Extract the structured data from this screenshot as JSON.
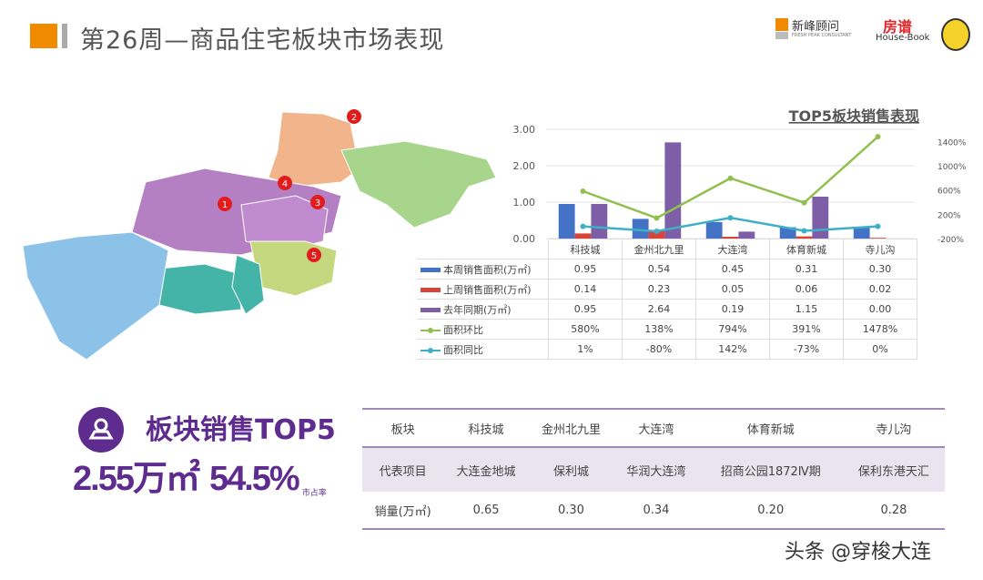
{
  "header": {
    "title": "第26周—商品住宅板块市场表现",
    "logo1": "新峰顾问",
    "logo1_sub": "FRESH PEAK CONSULTANT",
    "logo2": "房谱",
    "logo2_sub": "House-Book"
  },
  "map": {
    "markers": [
      "1",
      "2",
      "3",
      "4",
      "5"
    ]
  },
  "chart_data": {
    "type": "bar",
    "title": "TOP5板块销售表现",
    "categories": [
      "科技城",
      "金州北九里",
      "大连湾",
      "体育新城",
      "寺儿沟"
    ],
    "ylim": [
      0,
      3
    ],
    "yticks": [
      "0.00",
      "1.00",
      "2.00",
      "3.00"
    ],
    "y2lim": [
      -200,
      1600
    ],
    "y2ticks": [
      "-200%",
      "200%",
      "600%",
      "1000%",
      "1400%"
    ],
    "series": [
      {
        "name": "本周销售面积(万㎡)",
        "kind": "bar",
        "color": "#4472c4",
        "values": [
          0.95,
          0.54,
          0.45,
          0.31,
          0.3
        ],
        "labels": [
          "0.95",
          "0.54",
          "0.45",
          "0.31",
          "0.30"
        ]
      },
      {
        "name": "上周销售面积(万㎡)",
        "kind": "bar",
        "color": "#d9443a",
        "values": [
          0.14,
          0.23,
          0.05,
          0.06,
          0.02
        ],
        "labels": [
          "0.14",
          "0.23",
          "0.05",
          "0.06",
          "0.02"
        ]
      },
      {
        "name": "去年同期(万㎡)",
        "kind": "bar",
        "color": "#7f5ea8",
        "values": [
          0.95,
          2.64,
          0.19,
          1.15,
          0.0
        ],
        "labels": [
          "0.95",
          "2.64",
          "0.19",
          "1.15",
          "0.00"
        ]
      },
      {
        "name": "面积环比",
        "kind": "line",
        "color": "#92c050",
        "values": [
          580,
          138,
          794,
          391,
          1478
        ],
        "labels": [
          "580%",
          "138%",
          "794%",
          "391%",
          "1478%"
        ]
      },
      {
        "name": "面积同比",
        "kind": "line",
        "color": "#3db0c8",
        "values": [
          1,
          -80,
          142,
          -73,
          0
        ],
        "labels": [
          "1%",
          "-80%",
          "142%",
          "-73%",
          "0%"
        ]
      }
    ]
  },
  "summary": {
    "title": "板块销售TOP5",
    "area": "2.55万㎡",
    "share": "54.5%",
    "share_label": "市占率"
  },
  "sales_table": {
    "headers": [
      "板块",
      "科技城",
      "金州北九里",
      "大连湾",
      "体育新城",
      "寺儿沟"
    ],
    "projects": [
      "代表项目",
      "大连金地城",
      "保利城",
      "华润大连湾",
      "招商公园1872Ⅳ期",
      "保利东港天汇"
    ],
    "volume": [
      "销量(万㎡)",
      "0.65",
      "0.30",
      "0.34",
      "0.20",
      "0.28"
    ]
  },
  "footer": "头条 @穿梭大连"
}
